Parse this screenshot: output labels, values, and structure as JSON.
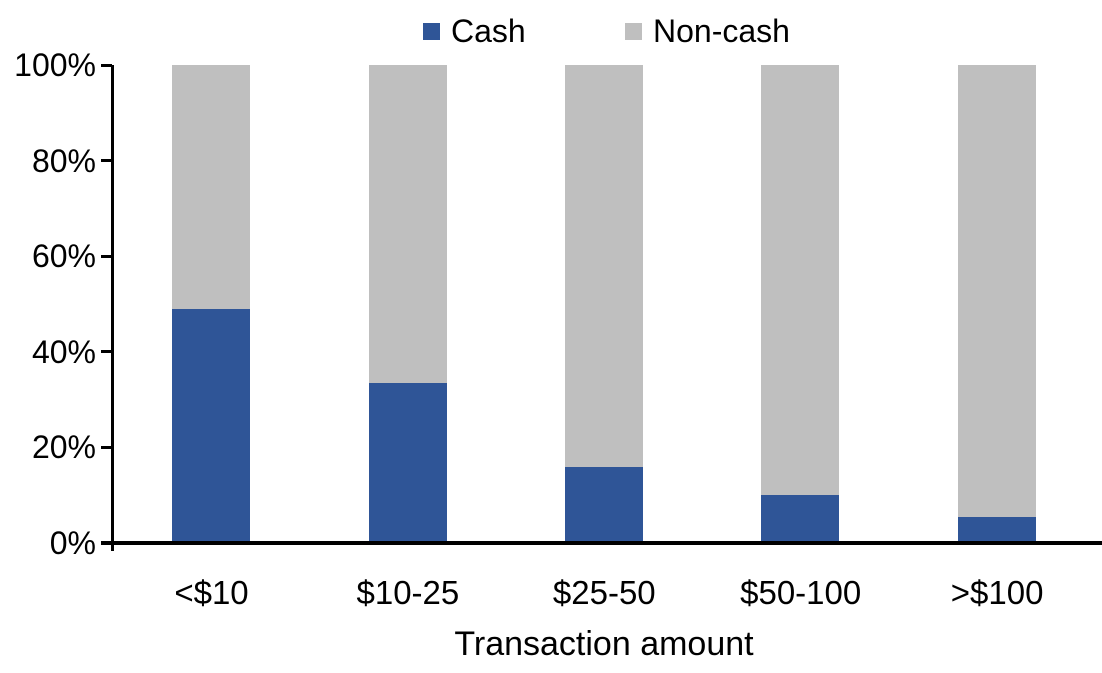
{
  "chart_data": {
    "type": "bar",
    "stacked": true,
    "percent_stacked": true,
    "title": "",
    "xlabel": "Transaction amount",
    "ylabel": "",
    "categories": [
      "<$10",
      "$10-25",
      "$25-50",
      "$50-100",
      ">$100"
    ],
    "series": [
      {
        "name": "Cash",
        "color": "#2F5597",
        "values": [
          49,
          33.5,
          16,
          10,
          5.5
        ]
      },
      {
        "name": "Non-cash",
        "color": "#BFBFBF",
        "values": [
          51,
          66.5,
          84,
          90,
          94.5
        ]
      }
    ],
    "yticks": [
      "0%",
      "20%",
      "40%",
      "60%",
      "80%",
      "100%"
    ],
    "ylim": [
      0,
      100
    ],
    "grid": false,
    "legend_position": "top"
  },
  "colors": {
    "cash": "#2F5597",
    "noncash": "#BFBFBF",
    "axis": "#000000",
    "text": "#000000",
    "background": "#FFFFFF"
  }
}
